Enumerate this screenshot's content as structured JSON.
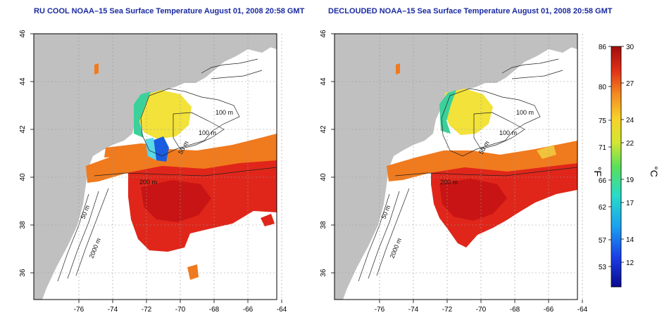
{
  "titles": {
    "left": "RU COOL NOAA–15 Sea Surface Temperature August 01, 2008 20:58 GMT",
    "right": "DECLOUDED NOAA–15 Sea Surface Temperature August 01, 2008 20:58 GMT"
  },
  "axes": {
    "lon_ticks": [
      "-76",
      "-74",
      "-72",
      "-70",
      "-68",
      "-66",
      "-64"
    ],
    "lat_ticks": [
      "46",
      "44",
      "42",
      "40",
      "38",
      "36"
    ]
  },
  "isobath_labels": [
    "100 m",
    "100 m",
    "50 m",
    "200 m",
    "50 m",
    "2000 m"
  ],
  "colorbar": {
    "f_ticks": [
      "86",
      "80",
      "75",
      "71",
      "66",
      "62",
      "57",
      "53"
    ],
    "c_ticks": [
      "30",
      "27",
      "24",
      "22",
      "19",
      "17",
      "14",
      "12"
    ],
    "f_label": "°F",
    "c_label": "°C"
  },
  "colors": {
    "land": "#c0c0c0",
    "water": "#ffffff",
    "warm": "#e0261a",
    "hot": "#c81414",
    "orange": "#f07a1e",
    "yellow": "#f2e23a",
    "cool": "#3ad29a",
    "cold": "#1a5ce0",
    "contour": "#222222"
  }
}
